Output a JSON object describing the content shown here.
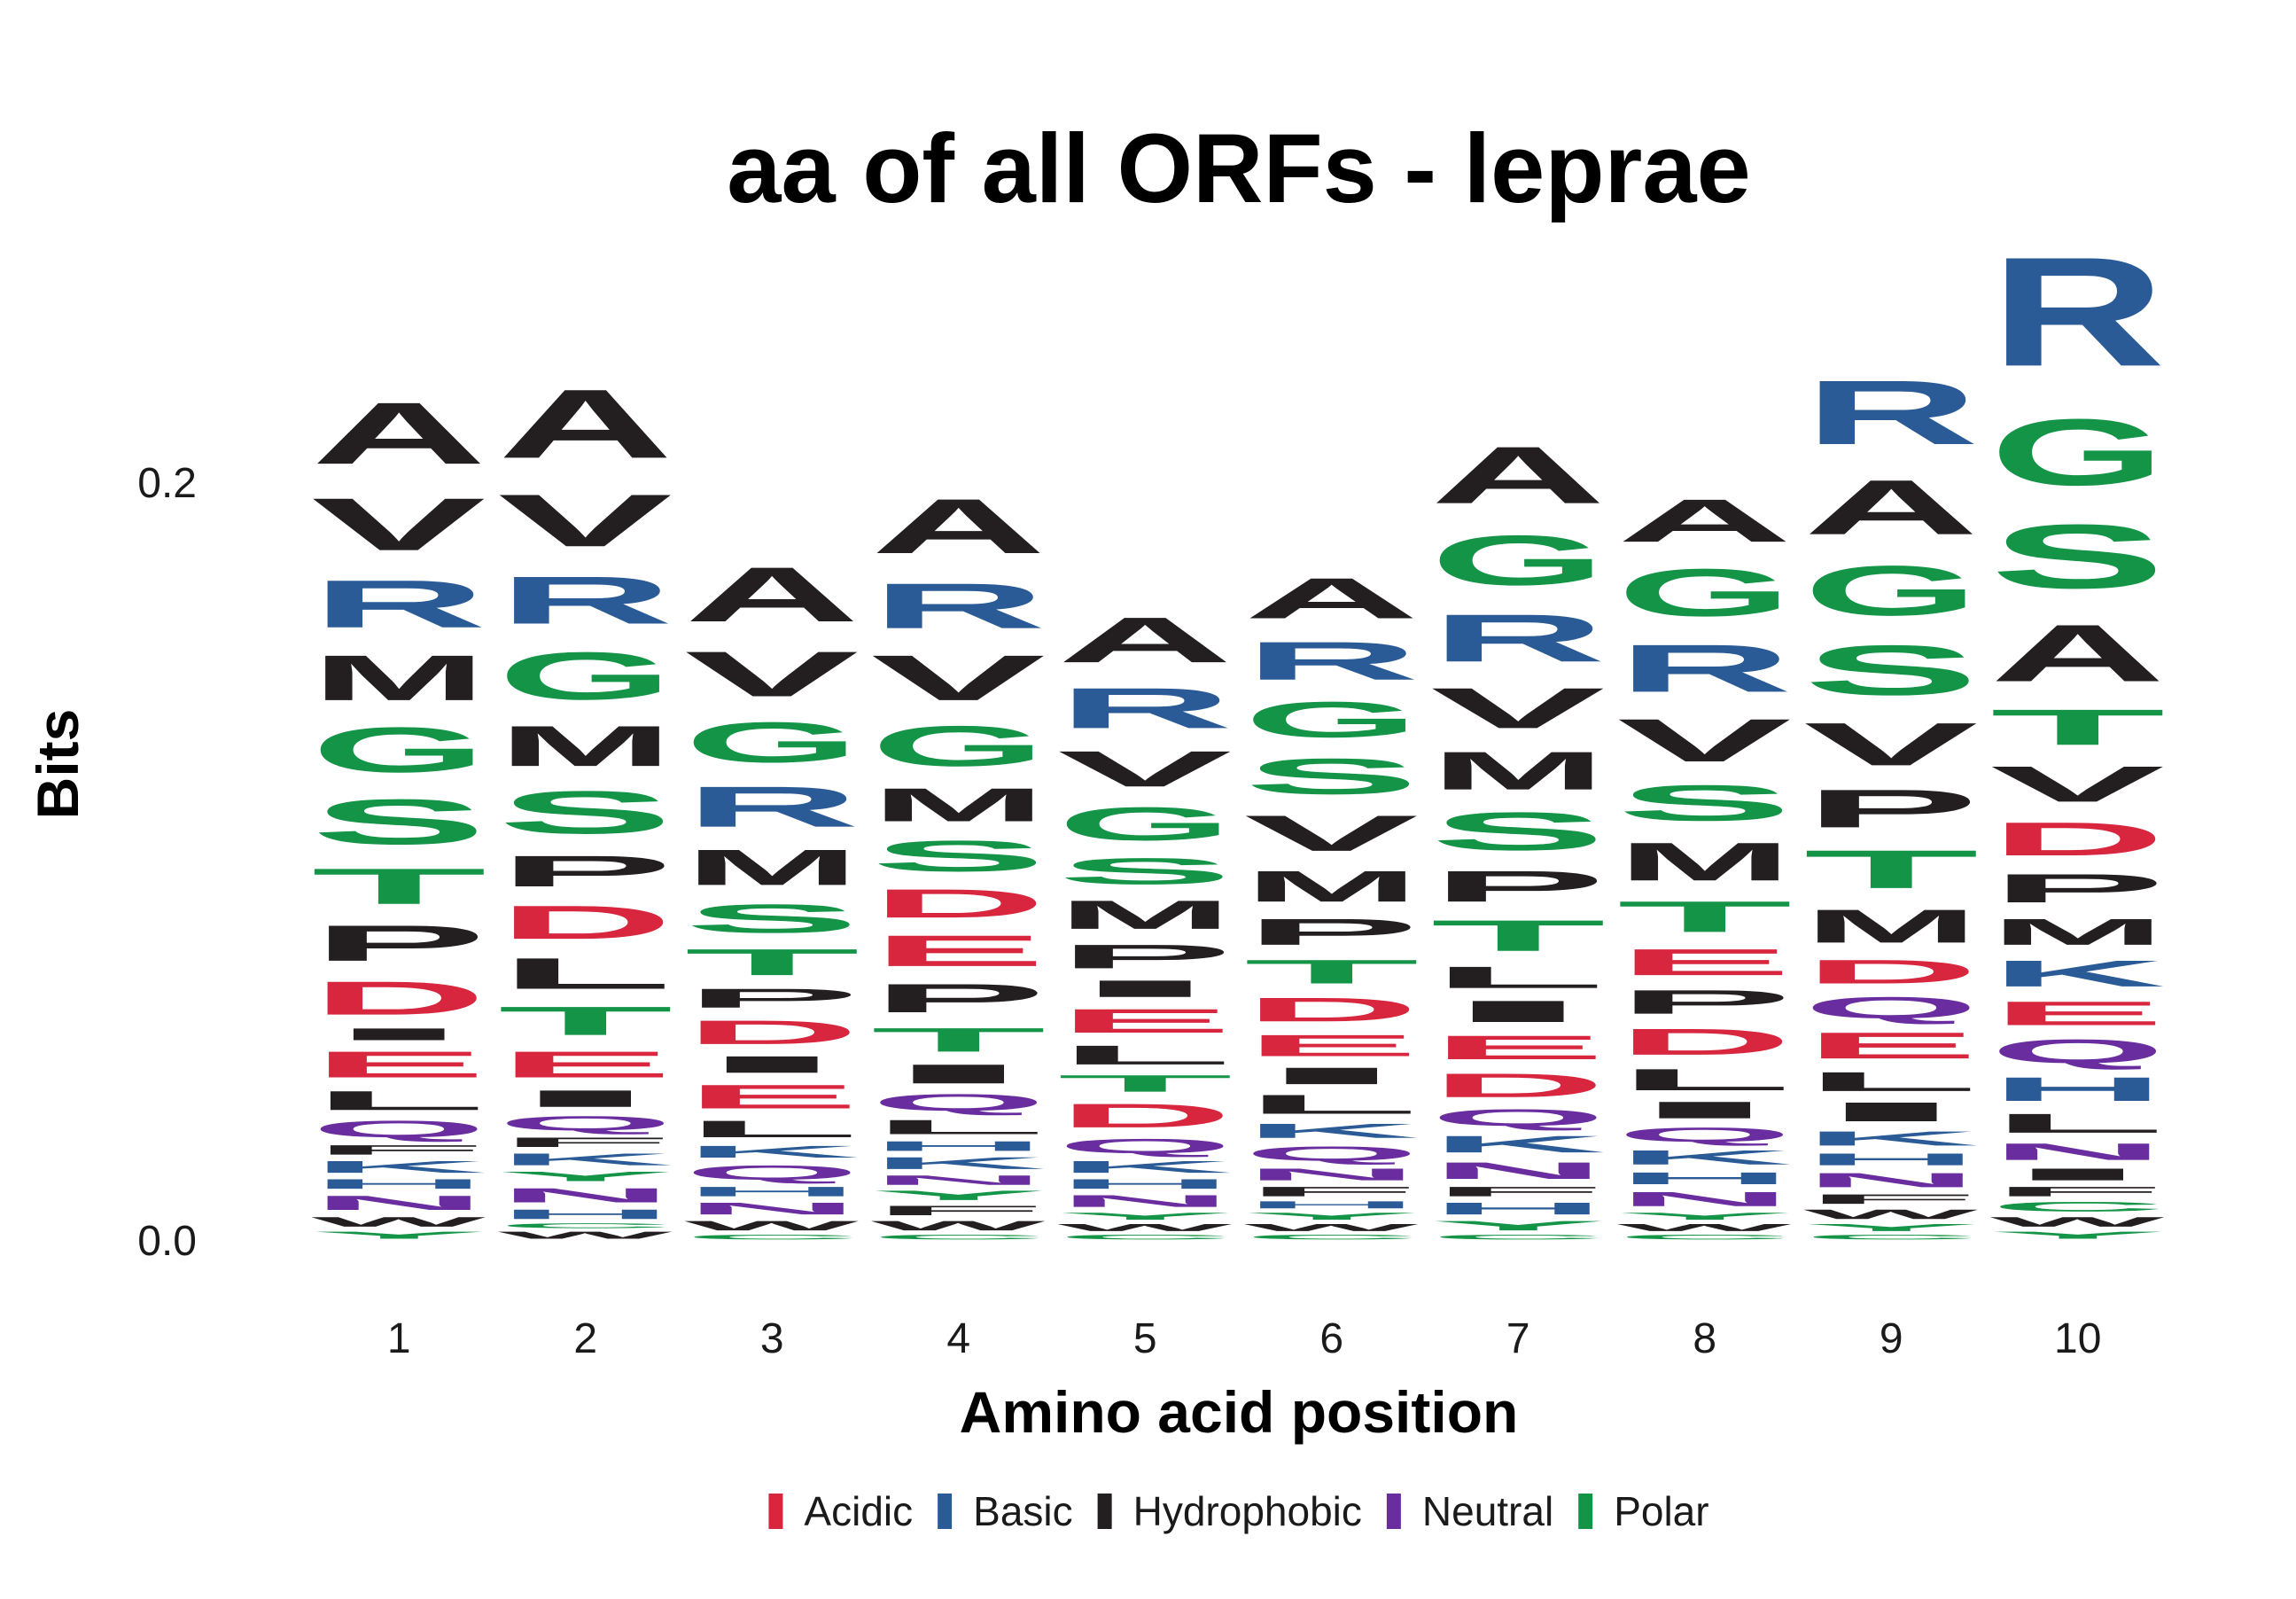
{
  "chart_data": {
    "type": "sequence-logo",
    "title": "aa of all ORFs - leprae",
    "xlabel": "Amino acid position",
    "ylabel": "Bits",
    "ylim": [
      0,
      0.25
    ],
    "y_ticks": [
      "0.0",
      "0.2"
    ],
    "y_tick_values": [
      0.0,
      0.2
    ],
    "positions": [
      "1",
      "2",
      "3",
      "4",
      "5",
      "6",
      "7",
      "8",
      "9",
      "10"
    ],
    "colors": {
      "Acidic": "#d7263d",
      "Basic": "#2a5b96",
      "Hydrophobic": "#231f20",
      "Neutral": "#6a2d9f",
      "Polar": "#139447"
    },
    "residue_class": {
      "A": "Hydrophobic",
      "V": "Hydrophobic",
      "M": "Hydrophobic",
      "P": "Hydrophobic",
      "L": "Hydrophobic",
      "I": "Hydrophobic",
      "F": "Hydrophobic",
      "W": "Hydrophobic",
      "R": "Basic",
      "K": "Basic",
      "H": "Basic",
      "D": "Acidic",
      "E": "Acidic",
      "Q": "Neutral",
      "N": "Neutral",
      "G": "Polar",
      "S": "Polar",
      "T": "Polar",
      "Y": "Polar",
      "C": "Polar"
    },
    "legend": [
      {
        "label": "Acidic",
        "key": "Acidic"
      },
      {
        "label": "Basic",
        "key": "Basic"
      },
      {
        "label": "Hydrophobic",
        "key": "Hydrophobic"
      },
      {
        "label": "Neutral",
        "key": "Neutral"
      },
      {
        "label": "Polar",
        "key": "Polar"
      }
    ],
    "stacks": [
      [
        [
          "Y",
          0.003
        ],
        [
          "W",
          0.004
        ],
        [
          "N",
          0.006
        ],
        [
          "H",
          0.004
        ],
        [
          "K",
          0.005
        ],
        [
          "F",
          0.004
        ],
        [
          "Q",
          0.007
        ],
        [
          "L",
          0.008
        ],
        [
          "E",
          0.011
        ],
        [
          "I",
          0.005
        ],
        [
          "D",
          0.014
        ],
        [
          "P",
          0.015
        ],
        [
          "T",
          0.015
        ],
        [
          "S",
          0.019
        ],
        [
          "G",
          0.019
        ],
        [
          "M",
          0.019
        ],
        [
          "R",
          0.02
        ],
        [
          "V",
          0.022
        ],
        [
          "A",
          0.026
        ]
      ],
      [
        [
          "W",
          0.003
        ],
        [
          "C",
          0.002
        ],
        [
          "H",
          0.004
        ],
        [
          "N",
          0.006
        ],
        [
          "Y",
          0.004
        ],
        [
          "K",
          0.005
        ],
        [
          "F",
          0.004
        ],
        [
          "Q",
          0.006
        ],
        [
          "I",
          0.007
        ],
        [
          "E",
          0.011
        ],
        [
          "T",
          0.012
        ],
        [
          "L",
          0.013
        ],
        [
          "D",
          0.014
        ],
        [
          "P",
          0.013
        ],
        [
          "S",
          0.018
        ],
        [
          "M",
          0.017
        ],
        [
          "G",
          0.02
        ],
        [
          "R",
          0.02
        ],
        [
          "V",
          0.022
        ],
        [
          "A",
          0.029
        ]
      ],
      [
        [
          "C",
          0.002
        ],
        [
          "W",
          0.004
        ],
        [
          "N",
          0.005
        ],
        [
          "H",
          0.004
        ],
        [
          "Q",
          0.006
        ],
        [
          "K",
          0.005
        ],
        [
          "L",
          0.007
        ],
        [
          "E",
          0.01
        ],
        [
          "I",
          0.007
        ],
        [
          "D",
          0.01
        ],
        [
          "P",
          0.008
        ],
        [
          "T",
          0.011
        ],
        [
          "S",
          0.012
        ],
        [
          "M",
          0.015
        ],
        [
          "R",
          0.017
        ],
        [
          "G",
          0.017
        ],
        [
          "V",
          0.019
        ],
        [
          "A",
          0.023
        ]
      ],
      [
        [
          "C",
          0.002
        ],
        [
          "W",
          0.004
        ],
        [
          "F",
          0.004
        ],
        [
          "Y",
          0.004
        ],
        [
          "N",
          0.004
        ],
        [
          "K",
          0.005
        ],
        [
          "H",
          0.004
        ],
        [
          "L",
          0.006
        ],
        [
          "Q",
          0.007
        ],
        [
          "I",
          0.008
        ],
        [
          "T",
          0.01
        ],
        [
          "P",
          0.012
        ],
        [
          "E",
          0.013
        ],
        [
          "D",
          0.012
        ],
        [
          "S",
          0.013
        ],
        [
          "M",
          0.014
        ],
        [
          "G",
          0.017
        ],
        [
          "V",
          0.019
        ],
        [
          "R",
          0.019
        ],
        [
          "A",
          0.023
        ]
      ],
      [
        [
          "C",
          0.002
        ],
        [
          "W",
          0.003
        ],
        [
          "Y",
          0.003
        ],
        [
          "N",
          0.005
        ],
        [
          "H",
          0.004
        ],
        [
          "K",
          0.005
        ],
        [
          "Q",
          0.006
        ],
        [
          "D",
          0.01
        ],
        [
          "T",
          0.007
        ],
        [
          "L",
          0.008
        ],
        [
          "E",
          0.01
        ],
        [
          "I",
          0.007
        ],
        [
          "P",
          0.01
        ],
        [
          "M",
          0.012
        ],
        [
          "S",
          0.011
        ],
        [
          "G",
          0.014
        ],
        [
          "V",
          0.015
        ],
        [
          "R",
          0.017
        ],
        [
          "A",
          0.019
        ]
      ],
      [
        [
          "C",
          0.002
        ],
        [
          "W",
          0.003
        ],
        [
          "Y",
          0.003
        ],
        [
          "H",
          0.003
        ],
        [
          "F",
          0.004
        ],
        [
          "N",
          0.005
        ],
        [
          "Q",
          0.006
        ],
        [
          "K",
          0.006
        ],
        [
          "L",
          0.008
        ],
        [
          "I",
          0.007
        ],
        [
          "E",
          0.009
        ],
        [
          "D",
          0.01
        ],
        [
          "T",
          0.01
        ],
        [
          "P",
          0.011
        ],
        [
          "M",
          0.013
        ],
        [
          "V",
          0.015
        ],
        [
          "S",
          0.015
        ],
        [
          "G",
          0.015
        ],
        [
          "R",
          0.016
        ],
        [
          "A",
          0.017
        ]
      ],
      [
        [
          "C",
          0.002
        ],
        [
          "Y",
          0.004
        ],
        [
          "H",
          0.005
        ],
        [
          "F",
          0.004
        ],
        [
          "N",
          0.007
        ],
        [
          "K",
          0.007
        ],
        [
          "Q",
          0.007
        ],
        [
          "D",
          0.01
        ],
        [
          "E",
          0.01
        ],
        [
          "I",
          0.009
        ],
        [
          "L",
          0.009
        ],
        [
          "T",
          0.013
        ],
        [
          "P",
          0.013
        ],
        [
          "S",
          0.016
        ],
        [
          "M",
          0.016
        ],
        [
          "V",
          0.017
        ],
        [
          "R",
          0.02
        ],
        [
          "G",
          0.021
        ],
        [
          "A",
          0.024
        ]
      ],
      [
        [
          "C",
          0.002
        ],
        [
          "W",
          0.003
        ],
        [
          "Y",
          0.003
        ],
        [
          "N",
          0.006
        ],
        [
          "H",
          0.005
        ],
        [
          "K",
          0.006
        ],
        [
          "Q",
          0.006
        ],
        [
          "I",
          0.007
        ],
        [
          "L",
          0.009
        ],
        [
          "D",
          0.011
        ],
        [
          "P",
          0.01
        ],
        [
          "E",
          0.011
        ],
        [
          "T",
          0.013
        ],
        [
          "M",
          0.016
        ],
        [
          "S",
          0.015
        ],
        [
          "V",
          0.018
        ],
        [
          "R",
          0.02
        ],
        [
          "G",
          0.02
        ],
        [
          "A",
          0.018
        ]
      ],
      [
        [
          "C",
          0.002
        ],
        [
          "Y",
          0.003
        ],
        [
          "W",
          0.004
        ],
        [
          "F",
          0.004
        ],
        [
          "N",
          0.006
        ],
        [
          "H",
          0.005
        ],
        [
          "K",
          0.006
        ],
        [
          "I",
          0.008
        ],
        [
          "L",
          0.008
        ],
        [
          "E",
          0.011
        ],
        [
          "Q",
          0.009
        ],
        [
          "D",
          0.01
        ],
        [
          "M",
          0.014
        ],
        [
          "T",
          0.016
        ],
        [
          "P",
          0.016
        ],
        [
          "V",
          0.018
        ],
        [
          "S",
          0.021
        ],
        [
          "G",
          0.021
        ],
        [
          "A",
          0.023
        ],
        [
          "R",
          0.027
        ]
      ],
      [
        [
          "Y",
          0.003
        ],
        [
          "W",
          0.004
        ],
        [
          "C",
          0.004
        ],
        [
          "F",
          0.004
        ],
        [
          "I",
          0.005
        ],
        [
          "N",
          0.007
        ],
        [
          "L",
          0.008
        ],
        [
          "H",
          0.01
        ],
        [
          "Q",
          0.01
        ],
        [
          "E",
          0.01
        ],
        [
          "K",
          0.011
        ],
        [
          "M",
          0.011
        ],
        [
          "P",
          0.012
        ],
        [
          "D",
          0.014
        ],
        [
          "V",
          0.015
        ],
        [
          "T",
          0.015
        ],
        [
          "A",
          0.024
        ],
        [
          "S",
          0.027
        ],
        [
          "G",
          0.028
        ],
        [
          "R",
          0.046
        ]
      ]
    ]
  }
}
